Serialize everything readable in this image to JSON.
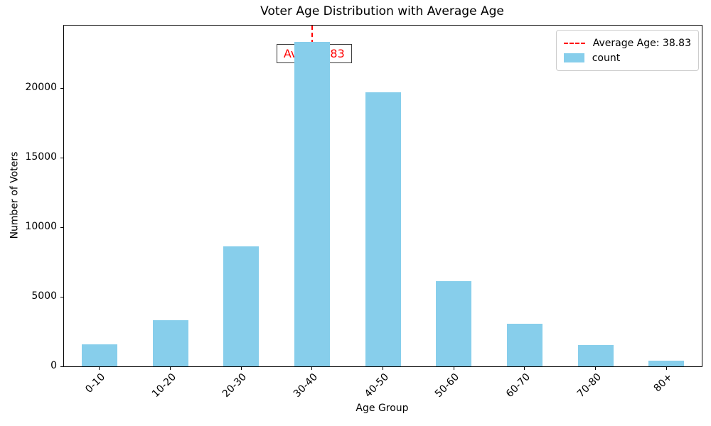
{
  "chart_data": {
    "type": "bar",
    "title": "Voter Age Distribution with Average Age",
    "xlabel": "Age Group",
    "ylabel": "Number of Voters",
    "categories": [
      "0-10",
      "10-20",
      "20-30",
      "30-40",
      "40-50",
      "50-60",
      "60-70",
      "70-80",
      "80+"
    ],
    "values": [
      1600,
      3300,
      8650,
      23350,
      19700,
      6150,
      3050,
      1550,
      400
    ],
    "series_name": "count",
    "bar_color": "#87CEEB",
    "ylim": [
      0,
      24500
    ],
    "yticks": [
      0,
      5000,
      10000,
      15000,
      20000
    ],
    "grid": false,
    "legend_position": "upper right",
    "average_line": {
      "value": 38.83,
      "x_index": 3,
      "color": "#FF0000",
      "style": "dashed"
    },
    "annotation": {
      "text": "Avg: 38.83",
      "color": "#FF0000"
    },
    "legend": {
      "items": [
        {
          "label": "Average Age: 38.83",
          "swatch": "dashed-line",
          "color": "#FF0000"
        },
        {
          "label": "count",
          "swatch": "patch",
          "color": "#87CEEB"
        }
      ]
    }
  }
}
